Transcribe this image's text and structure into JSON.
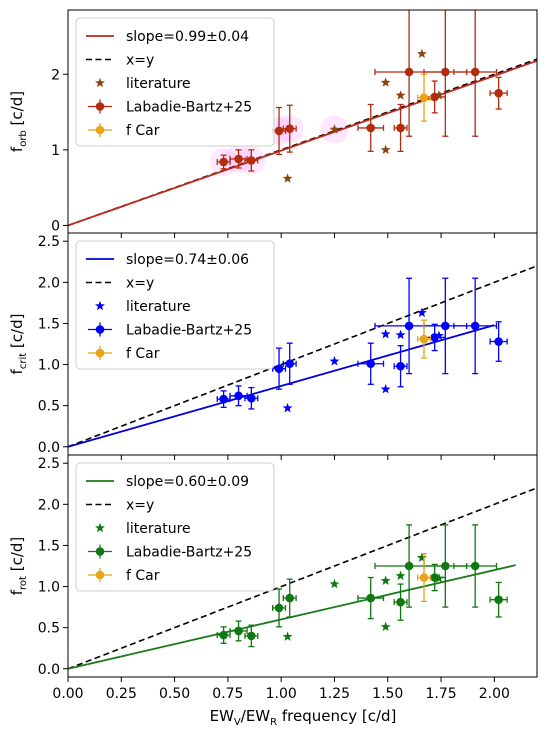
{
  "x_axis": {
    "label": "EW",
    "label_sub1": "V",
    "label_mid": "/EW",
    "label_sub2": "R",
    "label_end": " frequency [c/d]"
  },
  "chart_data": [
    {
      "type": "scatter",
      "panel": "orb",
      "ylabel_main": "f",
      "ylabel_sub": "orb",
      "ylabel_unit": " [c/d]",
      "xlim": [
        0.0,
        2.2
      ],
      "ylim": [
        -0.1,
        2.85
      ],
      "x_ticks": [],
      "y_ticks": [
        0,
        1,
        2
      ],
      "fit_color": "#c0281a",
      "point_color": "#b22c10",
      "star_color": "#8b4513",
      "fit": {
        "slope": 0.99,
        "x_end": 2.2
      },
      "shade": [
        [
          0.73,
          0.84
        ],
        [
          0.8,
          0.88
        ],
        [
          0.86,
          0.86
        ],
        [
          0.99,
          1.25
        ],
        [
          1.04,
          1.28
        ],
        [
          1.25,
          1.27
        ]
      ],
      "legend": [
        "slope=0.99±0.04",
        "x=y",
        "literature",
        "Labadie-Bartz+25",
        "f Car"
      ],
      "literature": [
        [
          1.03,
          0.62
        ],
        [
          1.25,
          1.27
        ],
        [
          1.49,
          1.0
        ],
        [
          1.49,
          1.89
        ],
        [
          1.56,
          1.72
        ],
        [
          1.66,
          2.27
        ],
        [
          1.74,
          1.72
        ]
      ],
      "labadie": [
        {
          "x": 0.73,
          "y": 0.84,
          "xe": 0.03,
          "ye": 0.09
        },
        {
          "x": 0.8,
          "y": 0.88,
          "xe": 0.04,
          "ye": 0.12
        },
        {
          "x": 0.86,
          "y": 0.86,
          "xe": 0.03,
          "ye": 0.14
        },
        {
          "x": 0.99,
          "y": 1.25,
          "xe": 0.03,
          "ye": 0.31
        },
        {
          "x": 1.04,
          "y": 1.28,
          "xe": 0.03,
          "ye": 0.31
        },
        {
          "x": 1.42,
          "y": 1.29,
          "xe": 0.06,
          "ye": 0.31
        },
        {
          "x": 1.56,
          "y": 1.29,
          "xe": 0.03,
          "ye": 0.31
        },
        {
          "x": 1.6,
          "y": 2.03,
          "xe": 0.16,
          "ye": 0.85
        },
        {
          "x": 1.72,
          "y": 1.7,
          "xe": 0.05,
          "ye": 0.21
        },
        {
          "x": 1.77,
          "y": 2.03,
          "xe": 0.1,
          "ye": 0.85
        },
        {
          "x": 1.91,
          "y": 2.03,
          "xe": 0.1,
          "ye": 0.85
        },
        {
          "x": 2.02,
          "y": 1.75,
          "xe": 0.04,
          "ye": 0.21
        }
      ],
      "fcar": {
        "x": 1.67,
        "y": 1.69,
        "xe": 0.03,
        "ye": 0.31
      }
    },
    {
      "type": "scatter",
      "panel": "crit",
      "ylabel_main": "f",
      "ylabel_sub": "crit",
      "ylabel_unit": " [c/d]",
      "xlim": [
        0.0,
        2.2
      ],
      "ylim": [
        -0.1,
        2.6
      ],
      "x_ticks": [],
      "y_ticks": [
        0.0,
        0.5,
        1.0,
        1.5,
        2.0,
        2.5
      ],
      "fit_color": "#0000dd",
      "point_color": "#0000ff",
      "star_color": "#0000ff",
      "fit": {
        "slope": 0.74,
        "x_end": 2.0
      },
      "shade": [],
      "legend": [
        "slope=0.74±0.06",
        "x=y",
        "literature",
        "Labadie-Bartz+25",
        "f Car"
      ],
      "literature": [
        [
          1.03,
          0.47
        ],
        [
          1.25,
          1.04
        ],
        [
          1.49,
          0.7
        ],
        [
          1.49,
          1.37
        ],
        [
          1.56,
          1.36
        ],
        [
          1.66,
          1.63
        ],
        [
          1.74,
          1.35
        ]
      ],
      "labadie": [
        {
          "x": 0.73,
          "y": 0.58,
          "xe": 0.03,
          "ye": 0.1
        },
        {
          "x": 0.8,
          "y": 0.62,
          "xe": 0.04,
          "ye": 0.12
        },
        {
          "x": 0.86,
          "y": 0.59,
          "xe": 0.03,
          "ye": 0.13
        },
        {
          "x": 0.99,
          "y": 0.95,
          "xe": 0.03,
          "ye": 0.25
        },
        {
          "x": 1.04,
          "y": 1.01,
          "xe": 0.03,
          "ye": 0.25
        },
        {
          "x": 1.42,
          "y": 1.01,
          "xe": 0.06,
          "ye": 0.25
        },
        {
          "x": 1.56,
          "y": 0.98,
          "xe": 0.03,
          "ye": 0.25
        },
        {
          "x": 1.6,
          "y": 1.47,
          "xe": 0.16,
          "ye": 0.58
        },
        {
          "x": 1.72,
          "y": 1.33,
          "xe": 0.05,
          "ye": 0.16
        },
        {
          "x": 1.77,
          "y": 1.47,
          "xe": 0.1,
          "ye": 0.58
        },
        {
          "x": 1.91,
          "y": 1.47,
          "xe": 0.1,
          "ye": 0.58
        },
        {
          "x": 2.02,
          "y": 1.28,
          "xe": 0.04,
          "ye": 0.24
        }
      ],
      "fcar": {
        "x": 1.67,
        "y": 1.31,
        "xe": 0.03,
        "ye": 0.23
      }
    },
    {
      "type": "scatter",
      "panel": "rot",
      "ylabel_main": "f",
      "ylabel_sub": "rot",
      "ylabel_unit": " [c/d]",
      "xlim": [
        0.0,
        2.2
      ],
      "ylim": [
        -0.1,
        2.6
      ],
      "x_ticks": [
        "0.00",
        "0.25",
        "0.50",
        "0.75",
        "1.00",
        "1.25",
        "1.50",
        "1.75",
        "2.00"
      ],
      "y_ticks": [
        0.0,
        0.5,
        1.0,
        1.5,
        2.0,
        2.5
      ],
      "fit_color": "#1a7a1a",
      "point_color": "#117811",
      "star_color": "#117811",
      "fit": {
        "slope": 0.6,
        "x_end": 2.1
      },
      "shade": [],
      "legend": [
        "slope=0.60±0.09",
        "x=y",
        "literature",
        "Labadie-Bartz+25",
        "f Car"
      ],
      "literature": [
        [
          1.03,
          0.39
        ],
        [
          1.25,
          1.03
        ],
        [
          1.49,
          0.51
        ],
        [
          1.49,
          1.07
        ],
        [
          1.56,
          1.13
        ],
        [
          1.66,
          1.35
        ],
        [
          1.74,
          1.1
        ]
      ],
      "labadie": [
        {
          "x": 0.73,
          "y": 0.41,
          "xe": 0.03,
          "ye": 0.1
        },
        {
          "x": 0.8,
          "y": 0.46,
          "xe": 0.04,
          "ye": 0.12
        },
        {
          "x": 0.86,
          "y": 0.4,
          "xe": 0.03,
          "ye": 0.13
        },
        {
          "x": 0.99,
          "y": 0.74,
          "xe": 0.03,
          "ye": 0.23
        },
        {
          "x": 1.04,
          "y": 0.86,
          "xe": 0.03,
          "ye": 0.23
        },
        {
          "x": 1.42,
          "y": 0.86,
          "xe": 0.06,
          "ye": 0.25
        },
        {
          "x": 1.56,
          "y": 0.81,
          "xe": 0.03,
          "ye": 0.22
        },
        {
          "x": 1.6,
          "y": 1.25,
          "xe": 0.16,
          "ye": 0.5
        },
        {
          "x": 1.72,
          "y": 1.11,
          "xe": 0.05,
          "ye": 0.16
        },
        {
          "x": 1.77,
          "y": 1.25,
          "xe": 0.1,
          "ye": 0.5
        },
        {
          "x": 1.91,
          "y": 1.25,
          "xe": 0.1,
          "ye": 0.5
        },
        {
          "x": 2.02,
          "y": 0.84,
          "xe": 0.04,
          "ye": 0.21
        }
      ],
      "fcar": {
        "x": 1.67,
        "y": 1.11,
        "xe": 0.03,
        "ye": 0.29
      }
    }
  ]
}
